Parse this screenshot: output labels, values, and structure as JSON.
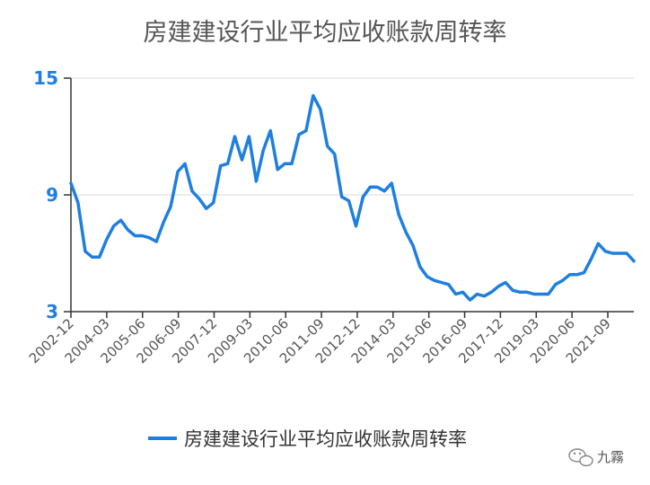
{
  "chart_data": {
    "type": "line",
    "title": "房建建设行业平均应收账款周转率",
    "xlabel": "",
    "ylabel": "",
    "ylim": [
      3,
      15
    ],
    "yticks": [
      3,
      9,
      15
    ],
    "grid": true,
    "legend_position": "bottom-center",
    "colors": {
      "line": "#1e7fe0",
      "ytick": "#1e7fe0",
      "grid": "#e0e0e0",
      "axis": "#333333",
      "xtick": "#555555"
    },
    "xticks": [
      "2002-12",
      "2004-03",
      "2005-06",
      "2006-09",
      "2007-12",
      "2009-03",
      "2010-06",
      "2011-09",
      "2012-12",
      "2014-03",
      "2015-06",
      "2016-09",
      "2017-12",
      "2019-03",
      "2020-06",
      "2021-09"
    ],
    "series": [
      {
        "name": "房建建设行业平均应收账款周转率",
        "values": [
          9.6,
          8.6,
          6.1,
          5.8,
          5.8,
          6.7,
          7.4,
          7.7,
          7.2,
          6.9,
          6.9,
          6.8,
          6.6,
          7.6,
          8.4,
          10.2,
          10.6,
          9.2,
          8.8,
          8.3,
          8.6,
          10.5,
          10.6,
          12.0,
          10.8,
          12.0,
          9.7,
          11.3,
          12.3,
          10.3,
          10.6,
          10.6,
          12.1,
          12.3,
          14.1,
          13.4,
          11.5,
          11.1,
          8.9,
          8.7,
          7.4,
          8.9,
          9.4,
          9.4,
          9.2,
          9.6,
          8.0,
          7.1,
          6.4,
          5.3,
          4.8,
          4.6,
          4.5,
          4.4,
          3.9,
          4.0,
          3.6,
          3.9,
          3.8,
          4.0,
          4.3,
          4.5,
          4.1,
          4.0,
          4.0,
          3.9,
          3.9,
          3.9,
          4.4,
          4.6,
          4.9,
          4.9,
          5.0,
          5.7,
          6.5,
          6.1,
          6.0,
          6.0,
          6.0,
          5.6
        ]
      }
    ]
  },
  "watermark": {
    "icon": "wechat-icon",
    "text": "九霧"
  }
}
